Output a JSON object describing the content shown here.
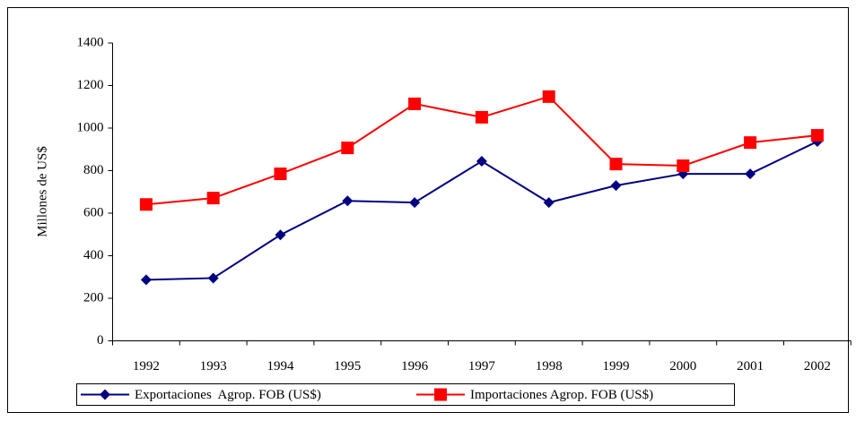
{
  "chart_data": {
    "type": "line",
    "categories": [
      "1992",
      "1993",
      "1994",
      "1995",
      "1996",
      "1997",
      "1998",
      "1999",
      "2000",
      "2001",
      "2002"
    ],
    "y_label": "Millones de US$",
    "ylim": [
      0,
      1400
    ],
    "yticks": [
      0,
      200,
      400,
      600,
      800,
      1000,
      1200,
      1400
    ],
    "legend": "bottom",
    "series": [
      {
        "name": "Exportaciones  Agrop. FOB (US$)",
        "color": "#000080",
        "marker": "diamond",
        "values": [
          287,
          295,
          498,
          658,
          650,
          844,
          650,
          730,
          785,
          785,
          937
        ]
      },
      {
        "name": "Importaciones Agrop. FOB (US$)",
        "color": "#ff0000",
        "marker": "square",
        "values": [
          641,
          671,
          785,
          907,
          1114,
          1051,
          1148,
          831,
          823,
          932,
          966
        ]
      }
    ]
  }
}
